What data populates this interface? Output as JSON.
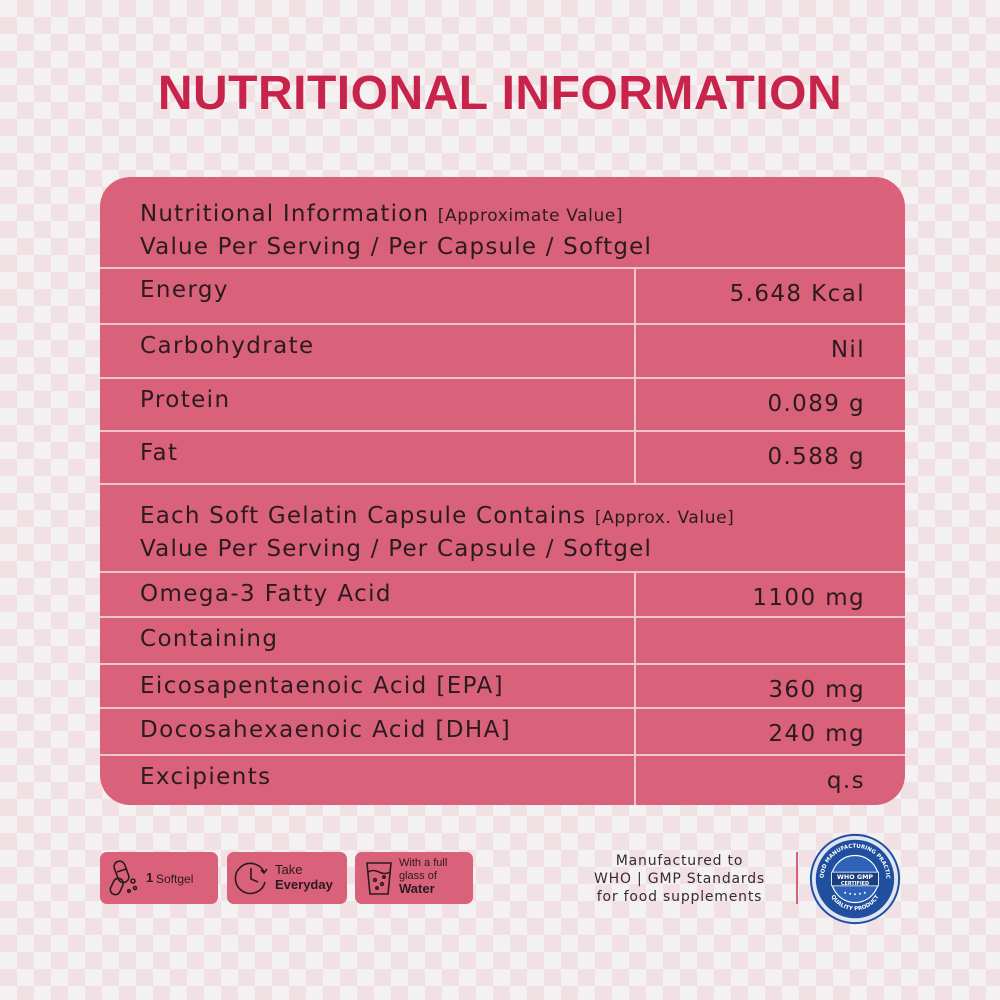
{
  "title": "NUTRITIONAL INFORMATION",
  "section1": {
    "line1_main": "Nutritional Information",
    "line1_note": "[Approximate Value]",
    "line2": "Value Per Serving / Per Capsule / Softgel"
  },
  "rows1": [
    {
      "label": "Energy",
      "value": "5.648 Kcal"
    },
    {
      "label": "Carbohydrate",
      "value": "Nil"
    },
    {
      "label": "Protein",
      "value": "0.089 g"
    },
    {
      "label": "Fat",
      "value": "0.588 g"
    }
  ],
  "section2": {
    "line1_main": "Each Soft Gelatin Capsule Contains",
    "line1_note": "[Approx. Value]",
    "line2": "Value Per Serving / Per Capsule / Softgel"
  },
  "rows2": [
    {
      "label": "Omega-3 Fatty Acid",
      "value": "1100 mg"
    },
    {
      "label": "Containing",
      "value": ""
    },
    {
      "label": "Eicosapentaenoic Acid [EPA]",
      "value": "360 mg"
    },
    {
      "label": "Docosahexaenoic Acid [DHA]",
      "value": "240 mg"
    },
    {
      "label": "Excipients",
      "value": "q.s"
    }
  ],
  "badges": {
    "softgel": {
      "count": "1",
      "label": "Softgel"
    },
    "everyday": {
      "line1": "Take",
      "line2": "Everyday"
    },
    "water": {
      "line1": "With a full",
      "line2": "glass of",
      "line3": "Water"
    }
  },
  "manufacturer": {
    "line1": "Manufactured to",
    "line2": "WHO | GMP Standards",
    "line3": "for food supplements"
  },
  "seal": {
    "top_text": "GOOD MANUFACTURING PRACTICE",
    "center1": "WHO GMP",
    "center2": "CERTIFIED",
    "bottom_text": "QUALITY PRODUCT"
  },
  "colors": {
    "accent": "#c8234a",
    "table": "#d9627a",
    "seal": "#1f4f9e"
  }
}
